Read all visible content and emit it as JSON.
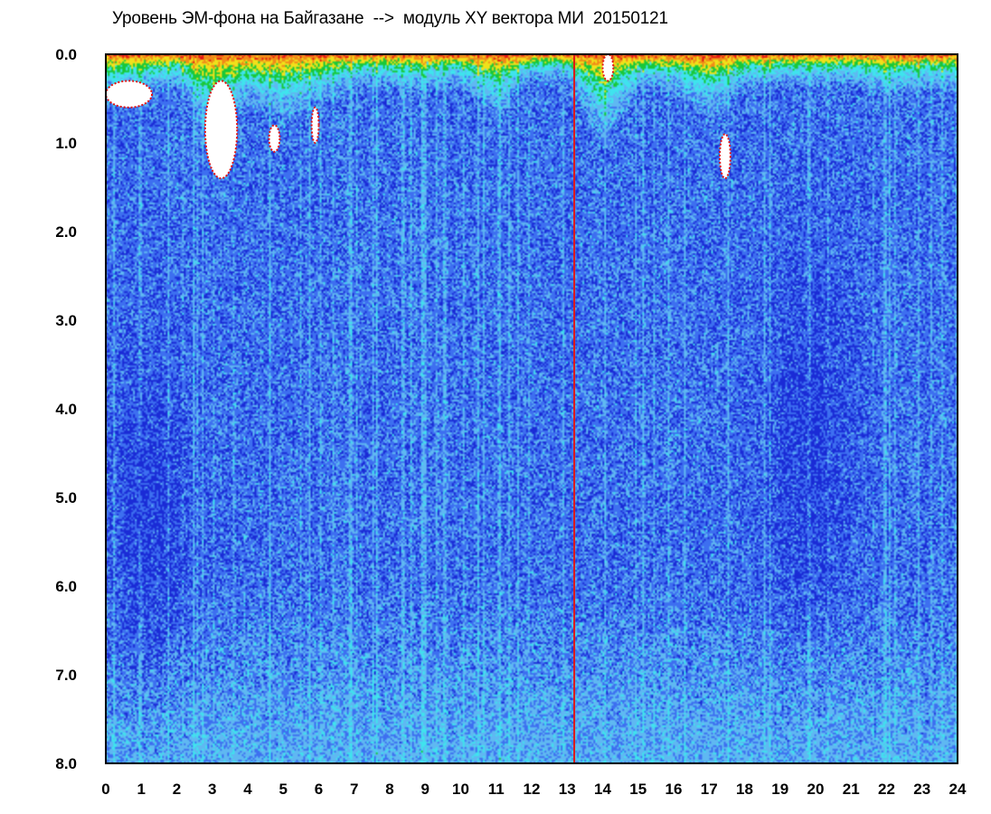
{
  "title": "Уровень ЭМ-фона на Байгазане  -->  модуль XY вектора МИ  20150121",
  "chart_data": {
    "type": "heatmap",
    "title": "Уровень ЭМ-фона на Байгазане  -->  модуль XY вектора МИ  20150121",
    "xlabel": "",
    "ylabel": "",
    "xlim": [
      0,
      24
    ],
    "ylim": [
      0,
      8
    ],
    "y_inverted": true,
    "grid": false,
    "x_ticks": [
      "0",
      "1",
      "2",
      "3",
      "4",
      "5",
      "6",
      "7",
      "8",
      "9",
      "10",
      "11",
      "12",
      "13",
      "14",
      "15",
      "16",
      "17",
      "18",
      "19",
      "20",
      "21",
      "22",
      "23",
      "24"
    ],
    "y_ticks": [
      "0.0",
      "1.0",
      "2.0",
      "3.0",
      "4.0",
      "5.0",
      "6.0",
      "7.0",
      "8.0"
    ],
    "colorscale": [
      "#1a2bd6",
      "#3d6ff0",
      "#5fb8f2",
      "#3fe3ee",
      "#19c83a",
      "#f0e11a",
      "#f08a18",
      "#e21414",
      "#ffffff"
    ],
    "colorscale_note": "low level = blue, increasing through cyan, green, yellow, orange, red; saturated = white",
    "activity_profile": {
      "hours": [
        0,
        1,
        2,
        3,
        4,
        5,
        6,
        7,
        8,
        9,
        10,
        11,
        12,
        13,
        14,
        15,
        16,
        17,
        18,
        19,
        20,
        21,
        22,
        23,
        24
      ],
      "high_level_extent": [
        0.9,
        0.8,
        0.6,
        1.7,
        1.0,
        1.4,
        1.0,
        0.6,
        0.7,
        0.7,
        0.6,
        1.2,
        0.5,
        0.5,
        1.8,
        0.7,
        0.7,
        1.3,
        0.7,
        0.6,
        0.6,
        0.6,
        0.8,
        0.7,
        0.7
      ]
    },
    "saturated_regions": [
      {
        "x": [
          0.0,
          1.3
        ],
        "y": [
          0.3,
          0.6
        ]
      },
      {
        "x": [
          2.8,
          3.7
        ],
        "y": [
          0.3,
          1.4
        ]
      },
      {
        "x": [
          4.6,
          4.9
        ],
        "y": [
          0.8,
          1.1
        ]
      },
      {
        "x": [
          5.8,
          6.0
        ],
        "y": [
          0.6,
          1.0
        ]
      },
      {
        "x": [
          14.0,
          14.3
        ],
        "y": [
          0.0,
          0.3
        ]
      },
      {
        "x": [
          17.3,
          17.6
        ],
        "y": [
          0.9,
          1.4
        ]
      }
    ],
    "vertical_line": {
      "x": 13.2,
      "color": "#e21414"
    }
  }
}
